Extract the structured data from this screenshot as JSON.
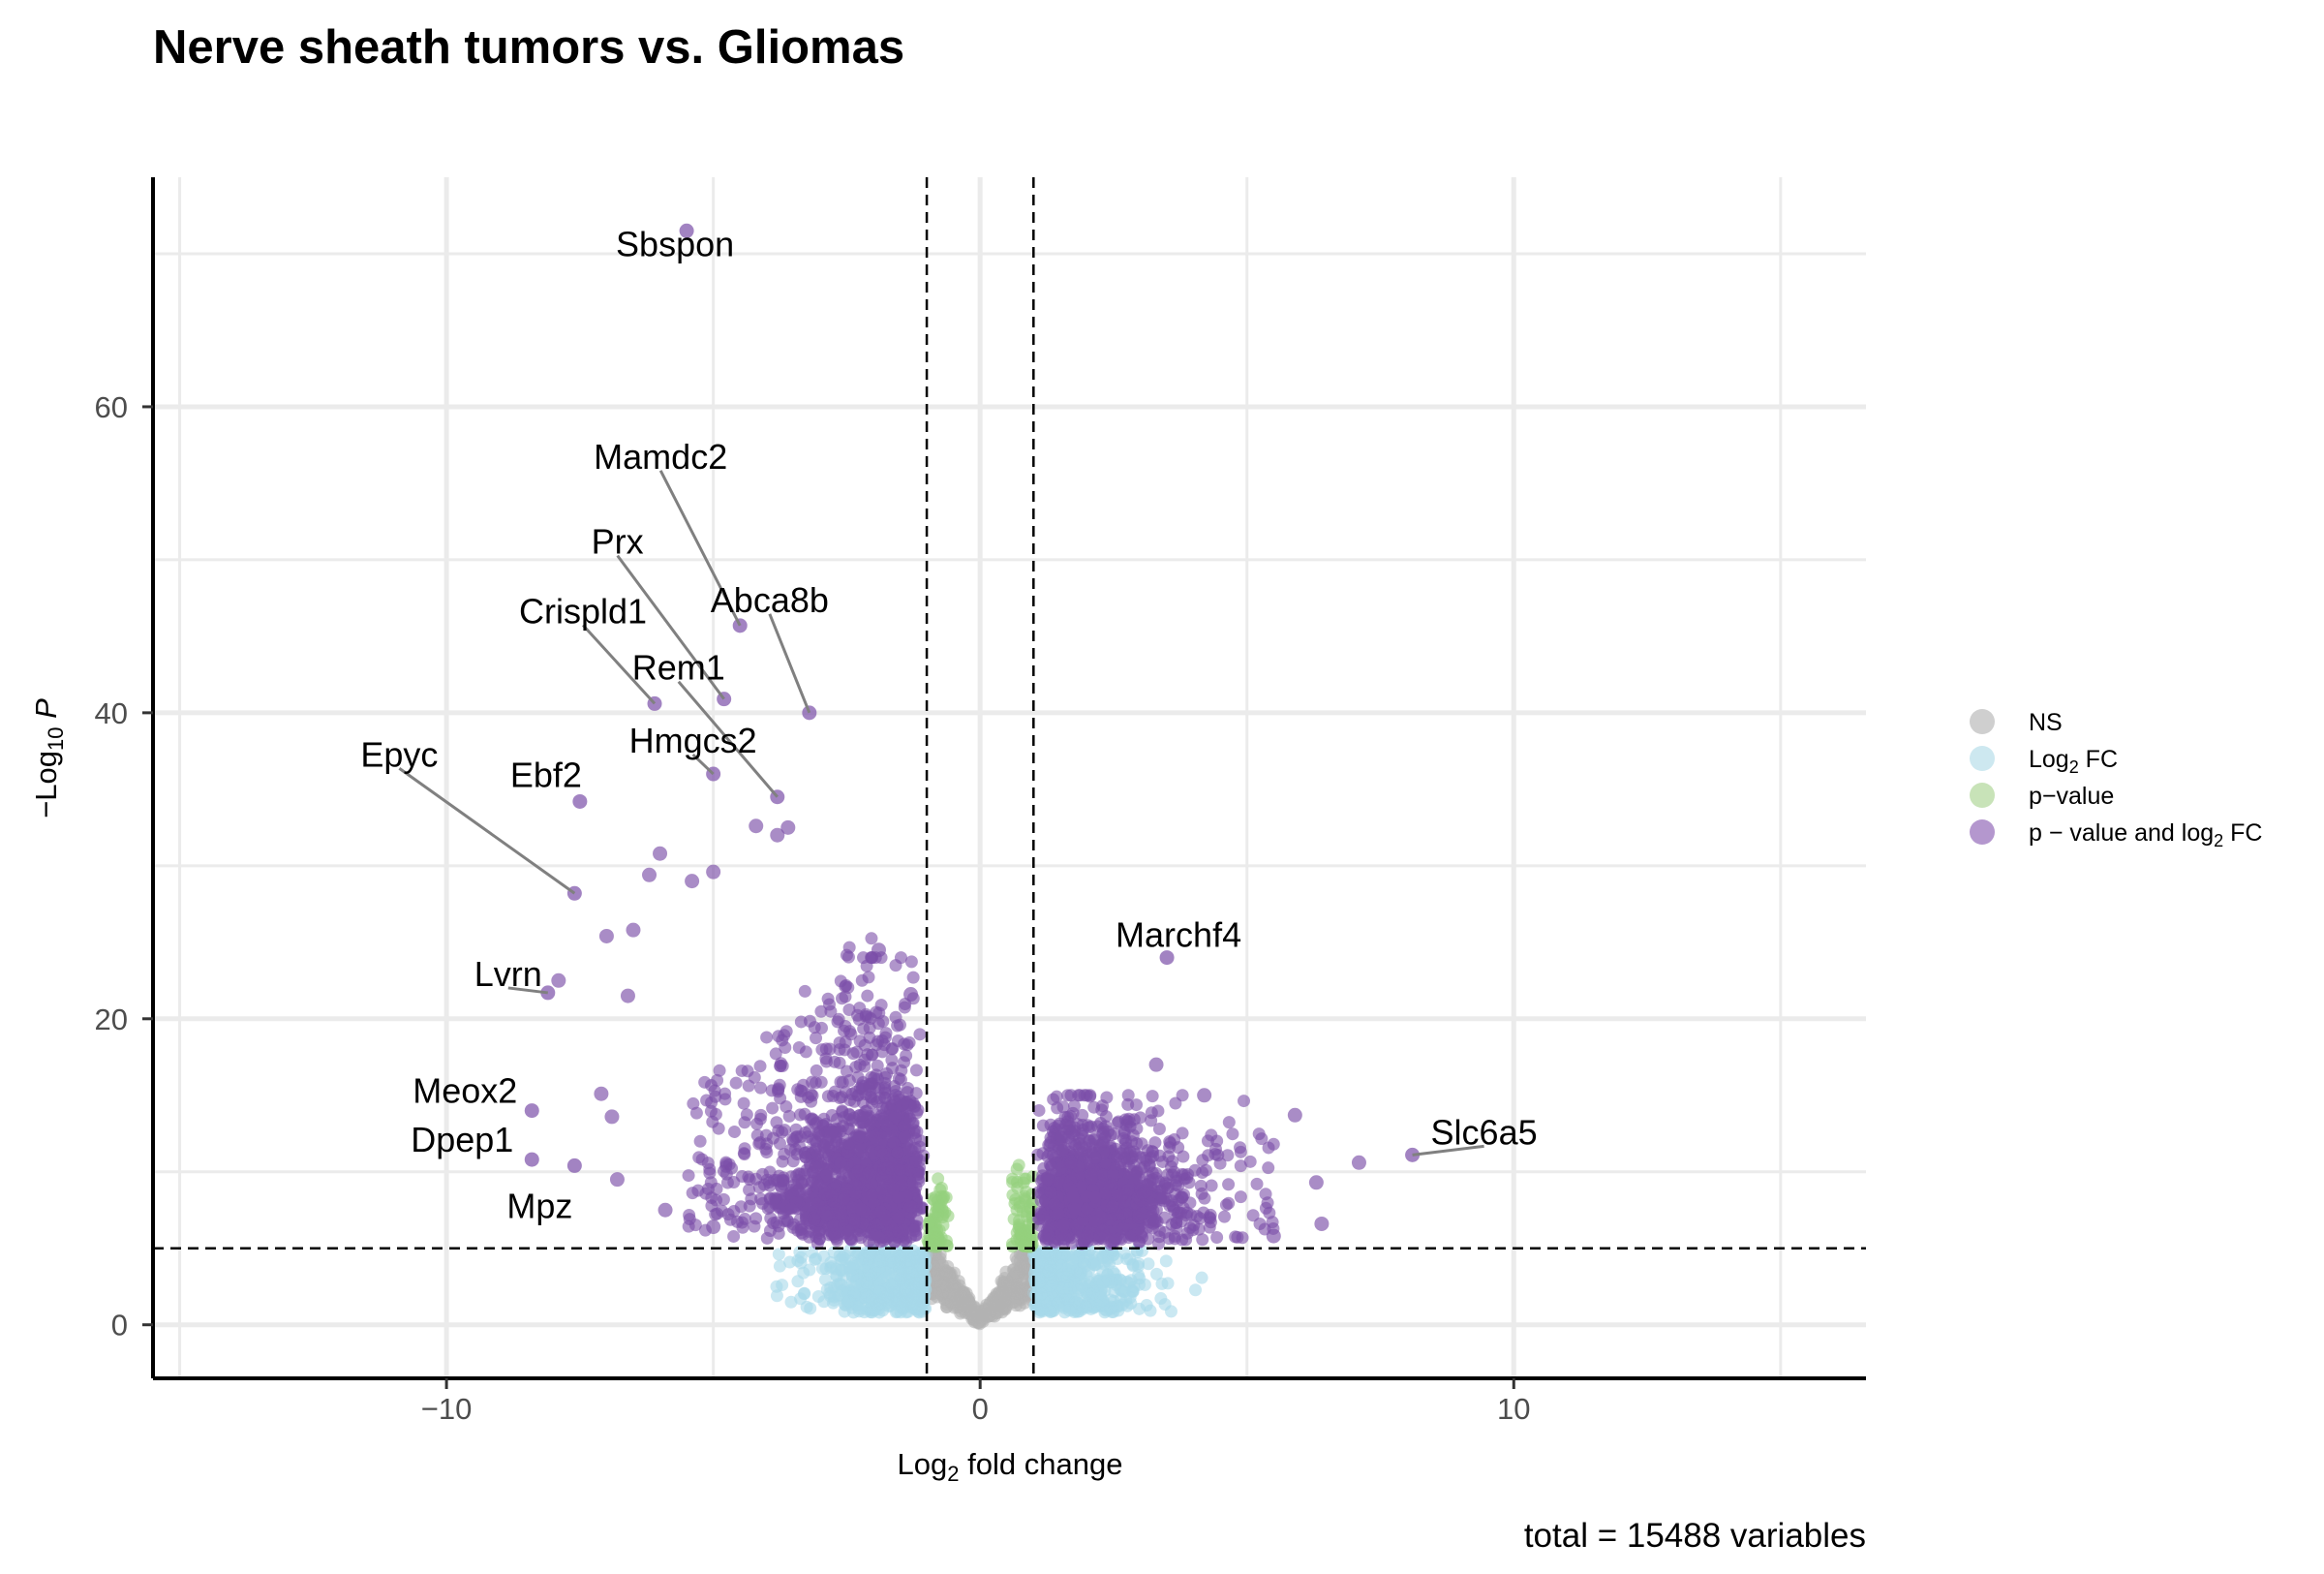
{
  "chart_data": {
    "type": "scatter",
    "title": "Nerve sheath tumors vs. Gliomas",
    "xlabel": "Log2 fold change",
    "ylabel": "-Log10 P",
    "caption": "total = 15488 variables",
    "xlim": [
      -15.5,
      16.6
    ],
    "ylim": [
      -3.5,
      75
    ],
    "x_ticks": [
      -10,
      0,
      10
    ],
    "y_ticks": [
      0,
      20,
      40,
      60
    ],
    "grid": true,
    "legend_position": "right",
    "thresholds": {
      "log2fc": [
        -1,
        1
      ],
      "neg_log10_p": 5
    },
    "legend": [
      {
        "key": "ns",
        "label": "NS",
        "color": "#cfcfcf"
      },
      {
        "key": "fc",
        "label": "Log2 FC",
        "color": "#cde8f0"
      },
      {
        "key": "p",
        "label": "p-value",
        "color": "#c8e3b8"
      },
      {
        "key": "both",
        "label": "p-value and log2 FC",
        "color": "#b497ce"
      }
    ],
    "colors": {
      "ns": "#b3b3b3",
      "fc": "#a6d8ea",
      "p": "#95d07d",
      "both": "#7b4ea8"
    },
    "labeled_genes": [
      {
        "name": "Sbspon",
        "x": -5.5,
        "y": 71.5
      },
      {
        "name": "Mamdc2",
        "x": -4.5,
        "y": 45.7
      },
      {
        "name": "Prx",
        "x": -4.8,
        "y": 40.9
      },
      {
        "name": "Abca8b",
        "x": -3.2,
        "y": 40.0
      },
      {
        "name": "Crispld1",
        "x": -6.1,
        "y": 40.6
      },
      {
        "name": "Rem1",
        "x": -3.8,
        "y": 34.5
      },
      {
        "name": "Hmgcs2",
        "x": -5.0,
        "y": 36.0
      },
      {
        "name": "Epyc",
        "x": -7.6,
        "y": 28.2
      },
      {
        "name": "Ebf2",
        "x": -7.5,
        "y": 34.2
      },
      {
        "name": "Lvrn",
        "x": -8.1,
        "y": 21.7
      },
      {
        "name": "Meox2",
        "x": -8.4,
        "y": 14.0
      },
      {
        "name": "Dpep1",
        "x": -8.4,
        "y": 10.8
      },
      {
        "name": "Mpz",
        "x": -7.6,
        "y": 10.4
      },
      {
        "name": "Marchf4",
        "x": 3.5,
        "y": 24.0
      },
      {
        "name": "Slc6a5",
        "x": 8.1,
        "y": 11.1
      }
    ],
    "other_points": [
      {
        "x": -3.6,
        "y": 32.5
      },
      {
        "x": -3.8,
        "y": 32.0
      },
      {
        "x": -4.2,
        "y": 32.6
      },
      {
        "x": -6.0,
        "y": 30.8
      },
      {
        "x": -6.2,
        "y": 29.4
      },
      {
        "x": -5.4,
        "y": 29.0
      },
      {
        "x": -5.0,
        "y": 29.6
      },
      {
        "x": -6.5,
        "y": 25.8
      },
      {
        "x": -7.0,
        "y": 25.4
      },
      {
        "x": -7.9,
        "y": 22.5
      },
      {
        "x": -6.6,
        "y": 21.5
      },
      {
        "x": -1.3,
        "y": 21.6
      },
      {
        "x": -1.9,
        "y": 24.5
      },
      {
        "x": -7.1,
        "y": 15.1
      },
      {
        "x": -6.9,
        "y": 13.6
      },
      {
        "x": -6.8,
        "y": 9.5
      },
      {
        "x": 3.3,
        "y": 17.0
      },
      {
        "x": 4.2,
        "y": 15.0
      },
      {
        "x": 5.9,
        "y": 13.7
      },
      {
        "x": 7.1,
        "y": 10.6
      },
      {
        "x": 6.3,
        "y": 9.3
      },
      {
        "x": 6.4,
        "y": 6.6
      },
      {
        "x": 5.5,
        "y": 5.8
      },
      {
        "x": -5.9,
        "y": 7.5
      },
      {
        "x": -5.0,
        "y": 6.4
      }
    ]
  }
}
